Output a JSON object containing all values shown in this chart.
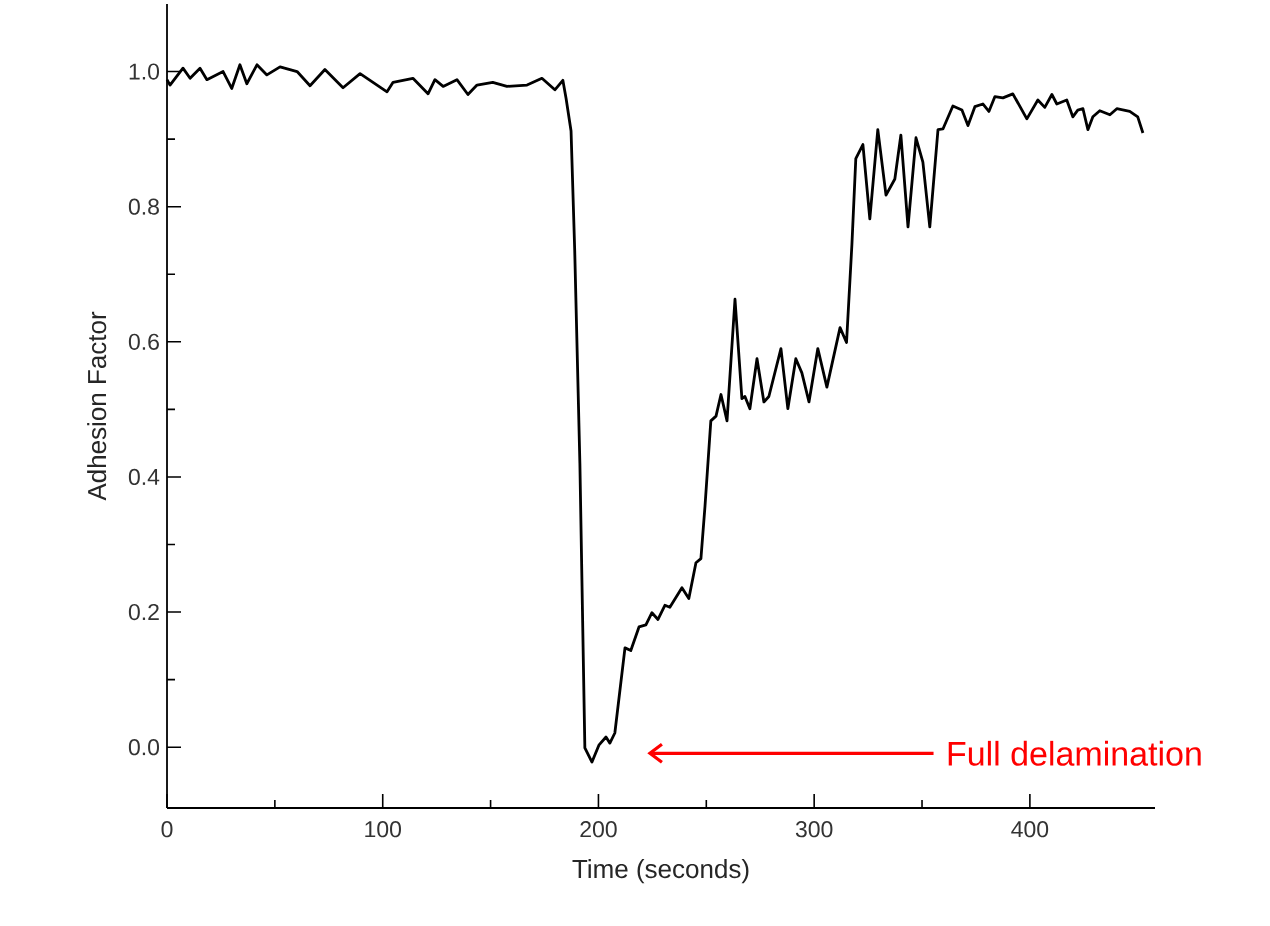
{
  "chart_data": {
    "type": "line",
    "xlabel": "Time (seconds)",
    "ylabel": "Adhesion Factor",
    "xlim": [
      0,
      458
    ],
    "ylim": [
      -0.09,
      1.1
    ],
    "xticks": [
      0,
      100,
      200,
      300,
      400
    ],
    "yticks": [
      {
        "value": 0,
        "label": "0.0"
      },
      {
        "value": 0.2,
        "label": "0.2"
      },
      {
        "value": 0.4,
        "label": "0.4"
      },
      {
        "value": 0.6,
        "label": "0.6"
      },
      {
        "value": 0.8,
        "label": "0.8"
      },
      {
        "value": 1.0,
        "label": "1.0"
      }
    ],
    "annotations": [
      "Full delamination"
    ],
    "series": [
      {
        "color": "#000000",
        "x": [
          0,
          1.4,
          7.4,
          10.7,
          15.3,
          18.5,
          26,
          30,
          33.8,
          37,
          41.7,
          46.3,
          52.4,
          60.3,
          66.3,
          73.2,
          81.6,
          89.5,
          102,
          104.8,
          114,
          121,
          124.2,
          128,
          134.4,
          139.5,
          143.7,
          151,
          157.6,
          166.9,
          173.8,
          179.8,
          183.5,
          185,
          187.3,
          189,
          191.4,
          193.7,
          197,
          200.2,
          203.5,
          205.3,
          207.6,
          212.3,
          215,
          218.8,
          222,
          224.8,
          227.6,
          230.8,
          233.1,
          238.7,
          241.9,
          245.2,
          247.5,
          249.4,
          252.1,
          254.5,
          256.8,
          259.6,
          263.3,
          266.5,
          267.9,
          270.2,
          273.5,
          276.7,
          279,
          284.6,
          287.8,
          291.5,
          294.3,
          297.6,
          301.7,
          305.9,
          312,
          315,
          317.5,
          319.3,
          322.6,
          325.8,
          329.5,
          333.3,
          337.4,
          340.2,
          343.5,
          347.2,
          350.4,
          353.6,
          357.4,
          359.7,
          364.3,
          368.5,
          371.3,
          374.5,
          378.2,
          381,
          383.8,
          387.5,
          392.1,
          398.6,
          403.7,
          406.9,
          410.2,
          412.5,
          417.1,
          419.9,
          422.2,
          424.6,
          426.9,
          429.2,
          432.4,
          437.1,
          440.3,
          446.3,
          450,
          452.4
        ],
        "values": [
          0.988,
          0.98,
          1.005,
          0.99,
          1.005,
          0.988,
          1.0,
          0.975,
          1.01,
          0.982,
          1.01,
          0.995,
          1.007,
          1.0,
          0.979,
          1.003,
          0.976,
          0.997,
          0.97,
          0.984,
          0.99,
          0.967,
          0.988,
          0.978,
          0.988,
          0.966,
          0.98,
          0.984,
          0.978,
          0.98,
          0.99,
          0.973,
          0.987,
          0.96,
          0.912,
          0.735,
          0.42,
          -0.001,
          -0.022,
          0.003,
          0.015,
          0.006,
          0.021,
          0.147,
          0.143,
          0.178,
          0.181,
          0.199,
          0.189,
          0.21,
          0.207,
          0.236,
          0.22,
          0.273,
          0.279,
          0.357,
          0.483,
          0.49,
          0.522,
          0.483,
          0.663,
          0.516,
          0.519,
          0.501,
          0.575,
          0.511,
          0.519,
          0.59,
          0.501,
          0.575,
          0.554,
          0.511,
          0.59,
          0.533,
          0.621,
          0.599,
          0.744,
          0.871,
          0.892,
          0.782,
          0.914,
          0.817,
          0.841,
          0.906,
          0.77,
          0.902,
          0.866,
          0.77,
          0.914,
          0.915,
          0.949,
          0.943,
          0.92,
          0.948,
          0.952,
          0.941,
          0.963,
          0.961,
          0.967,
          0.93,
          0.958,
          0.947,
          0.966,
          0.952,
          0.958,
          0.933,
          0.943,
          0.945,
          0.914,
          0.933,
          0.942,
          0.936,
          0.945,
          0.941,
          0.933,
          0.909
        ]
      }
    ]
  }
}
